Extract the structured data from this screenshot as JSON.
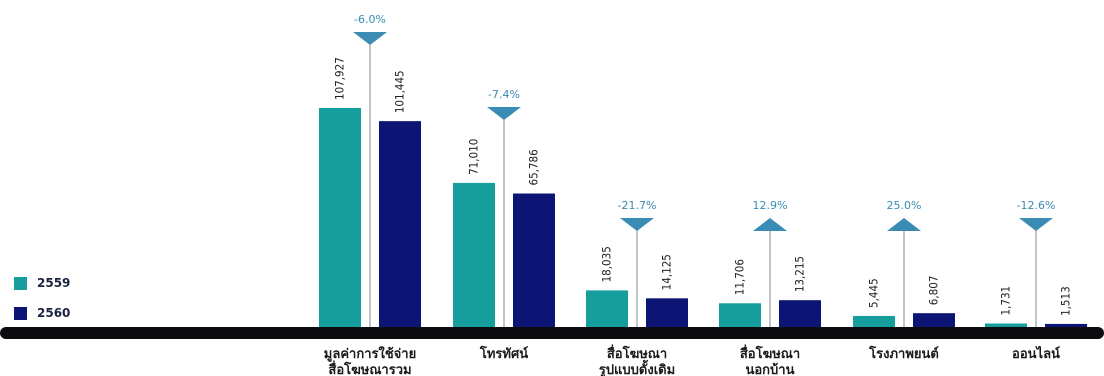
{
  "colors": {
    "y2559": "#159e9b",
    "y2560": "#0d1574",
    "baseline": "#0b0b10",
    "triangle": "#3a8cb4",
    "pct": "#3a8cb4",
    "label": "#222222"
  },
  "legend": {
    "items": [
      {
        "label": "2559",
        "color": "#159e9b"
      },
      {
        "label": "2560",
        "color": "#0d1574"
      }
    ]
  },
  "chart_data": {
    "type": "bar",
    "categories": [
      [
        "มูลค่าการใช้จ่าย",
        "สื่อโฆษณารวม"
      ],
      [
        "โทรทัศน์"
      ],
      [
        "สื่อโฆษณา",
        "รูปแบบดั้งเดิม"
      ],
      [
        "สื่อโฆษณา",
        "นอกบ้าน"
      ],
      [
        "โรงภาพยนต์"
      ],
      [
        "ออนไลน์"
      ]
    ],
    "series": [
      {
        "name": "2559",
        "values": [
          107927,
          71010,
          18035,
          11706,
          5445,
          1731
        ],
        "labels": [
          "107,927",
          "71,010",
          "18,035",
          "11,706",
          "5,445",
          "1,731"
        ]
      },
      {
        "name": "2560",
        "values": [
          101445,
          65786,
          14125,
          13215,
          6807,
          1513
        ],
        "labels": [
          "101,445",
          "65,786",
          "14,125",
          "13,215",
          "6,807",
          "1,513"
        ]
      }
    ],
    "changes": [
      {
        "label": "-6.0%",
        "direction": "down"
      },
      {
        "label": "-7.4%",
        "direction": "down"
      },
      {
        "label": "-21.7%",
        "direction": "down"
      },
      {
        "label": "12.9%",
        "direction": "up"
      },
      {
        "label": "25.0%",
        "direction": "up"
      },
      {
        "label": "-12.6%",
        "direction": "down"
      }
    ],
    "legend_position": "left",
    "grid": false
  }
}
